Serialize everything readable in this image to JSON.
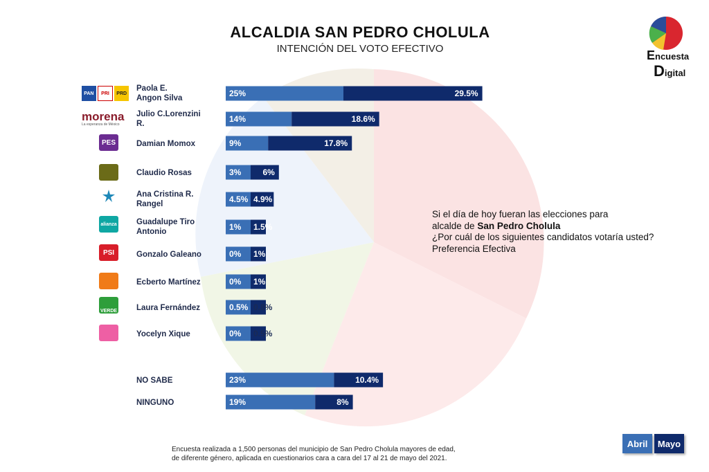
{
  "title": "ALCALDIA SAN PEDRO CHOLULA",
  "subtitle": "INTENCIÓN DEL VOTO EFECTIVO",
  "question": {
    "line1": "Si el día de hoy fueran las elecciones para",
    "line2_prefix": "alcalde de ",
    "line2_bold": "San Pedro Cholula",
    "line3": "¿Por cuál de los siguientes candidatos votaría usted?",
    "line4": "Preferencia Efectiva"
  },
  "footnote": {
    "line1": "Encuesta realizada a 1,500 personas del municipio de San Pedro Cholula mayores de edad,",
    "line2": "de diferente género, aplicada en cuestionarios cara a cara   del 17 al 21 de mayo del 2021."
  },
  "brand": {
    "line1": "ncuesta",
    "line2": "igital",
    "initial1": "E",
    "initial2": "D"
  },
  "party_logos": {
    "pan_prd": [
      "PAN",
      "PRI",
      "PRD"
    ],
    "morena": "morena",
    "morena_tag": "La esperanza de México",
    "pes": "PES",
    "psi": "PSI",
    "verde": "VERDE",
    "alianza": "alianza"
  },
  "colors": {
    "abril": "#3a6fb5",
    "mayo": "#0f2a6b"
  },
  "chart_data": {
    "type": "bar",
    "orientation": "horizontal",
    "stacked": true,
    "categories": [
      "Paola E. Angon Silva",
      "Julio C.Lorenzini R.",
      "Damian Momox",
      "Claudio Rosas",
      "Ana Cristina R. Rangel",
      "Guadalupe Tiro Antonio",
      "Gonzalo Galeano",
      "Ecberto Martínez",
      "Laura Fernández",
      "Yocelyn Xique",
      "NO SABE",
      "NINGUNO"
    ],
    "series": [
      {
        "name": "Abril",
        "values": [
          25,
          14,
          9,
          3,
          4.5,
          1,
          0,
          0,
          0.5,
          0,
          23,
          19
        ],
        "labels": [
          "25%",
          "14%",
          "9%",
          "3%",
          "4.5%",
          "1%",
          "0%",
          "0%",
          "0.5%",
          "0%",
          "23%",
          "19%"
        ]
      },
      {
        "name": "Mayo",
        "values": [
          29.5,
          18.6,
          17.8,
          6,
          4.9,
          1.5,
          1,
          1,
          0.8,
          0.5,
          10.4,
          8
        ],
        "labels": [
          "29.5%",
          "18.6%",
          "17.8%",
          "6%",
          "4.9%",
          "1.5%",
          "1%",
          "1%",
          "0.8%",
          "0.5%",
          "10.4%",
          "8%"
        ]
      }
    ],
    "legend": [
      "Abril",
      "Mayo"
    ],
    "legend_position": "bottom-right",
    "grid": false
  }
}
